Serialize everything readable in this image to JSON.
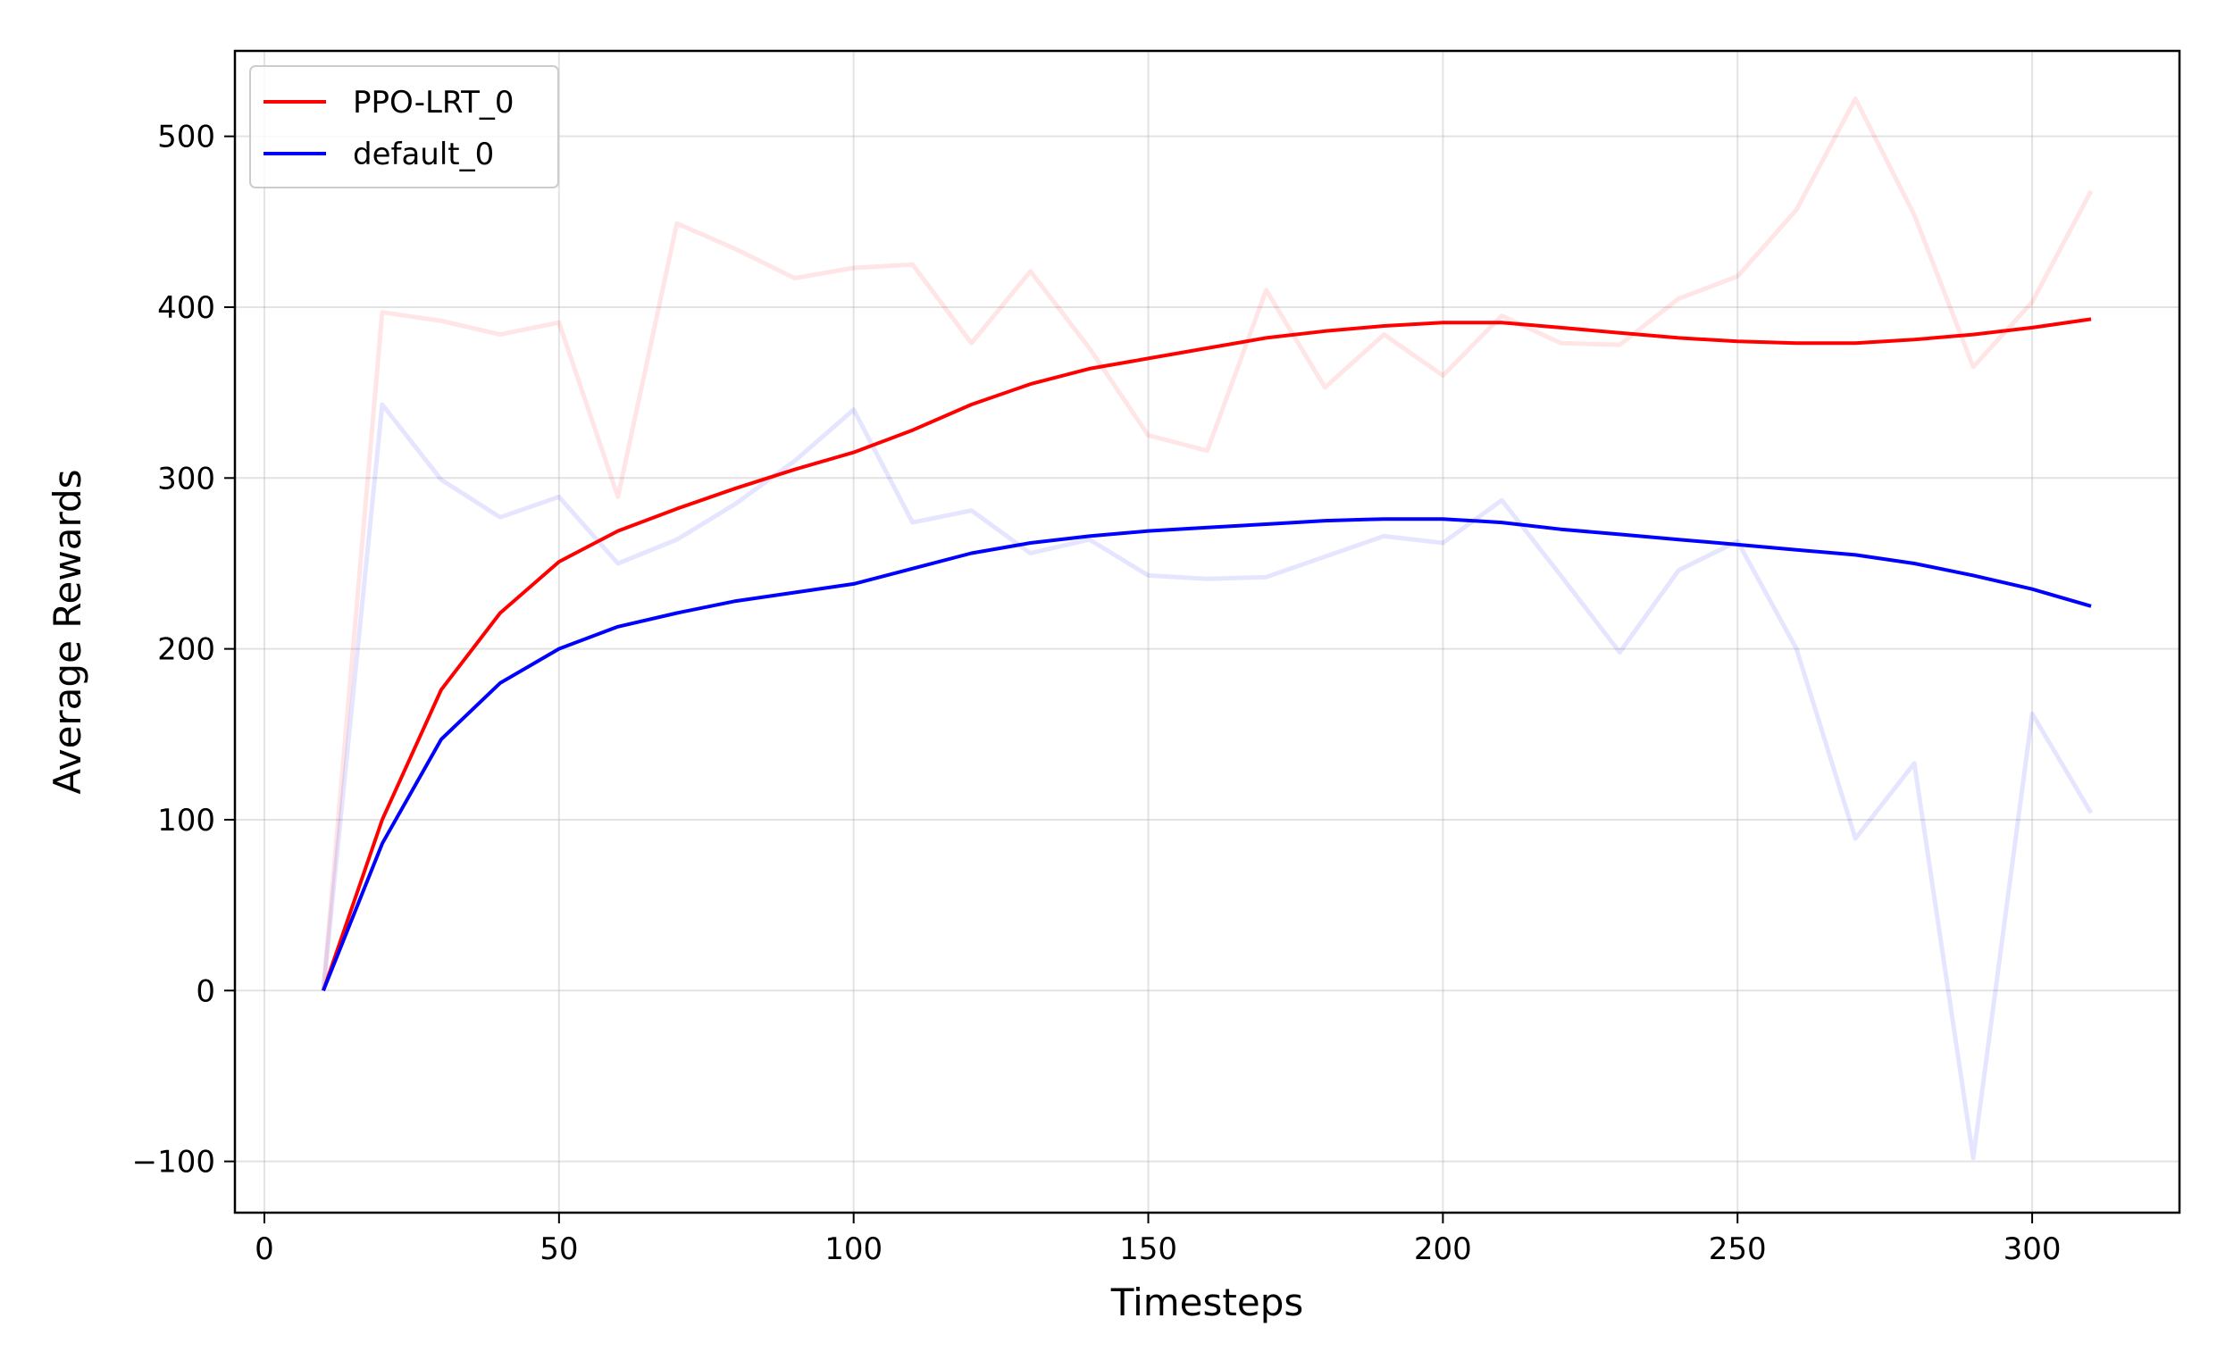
{
  "chart_data": {
    "type": "line",
    "title": "",
    "xlabel": "Timesteps",
    "ylabel": "Average Rewards",
    "xlim": [
      -5,
      325
    ],
    "ylim": [
      -130,
      550
    ],
    "xticks": [
      0,
      50,
      100,
      150,
      200,
      250,
      300
    ],
    "yticks": [
      -100,
      0,
      100,
      200,
      300,
      400,
      500
    ],
    "xtick_labels": [
      "0",
      "50",
      "100",
      "150",
      "200",
      "250",
      "300"
    ],
    "ytick_labels": [
      "−100",
      "0",
      "100",
      "200",
      "300",
      "400",
      "500"
    ],
    "grid": true,
    "legend_position": "upper-left",
    "x": [
      10,
      20,
      30,
      40,
      50,
      60,
      70,
      80,
      90,
      100,
      110,
      120,
      130,
      140,
      150,
      160,
      170,
      180,
      190,
      200,
      210,
      220,
      230,
      240,
      250,
      260,
      270,
      280,
      290,
      300,
      310
    ],
    "series": [
      {
        "name": "PPO-LRT_0",
        "color": "#ff0000",
        "smoothed": [
          0,
          100,
          176,
          221,
          251,
          269,
          282,
          294,
          305,
          315,
          328,
          343,
          355,
          364,
          370,
          376,
          382,
          386,
          389,
          391,
          391,
          388,
          385,
          382,
          380,
          379,
          379,
          381,
          384,
          388,
          393
        ],
        "raw": [
          0,
          397,
          392,
          384,
          391,
          289,
          449,
          434,
          417,
          423,
          425,
          379,
          421,
          376,
          325,
          316,
          410,
          353,
          384,
          360,
          395,
          379,
          378,
          405,
          418,
          457,
          522,
          454,
          365,
          403,
          468
        ]
      },
      {
        "name": "default_0",
        "color": "#0000ff",
        "smoothed": [
          0,
          86,
          147,
          180,
          200,
          213,
          221,
          228,
          233,
          238,
          247,
          256,
          262,
          266,
          269,
          271,
          273,
          275,
          276,
          276,
          274,
          270,
          267,
          264,
          261,
          258,
          255,
          250,
          243,
          235,
          225
        ],
        "raw": [
          0,
          343,
          299,
          277,
          289,
          250,
          264,
          285,
          310,
          340,
          274,
          281,
          256,
          264,
          243,
          241,
          242,
          254,
          266,
          262,
          287,
          243,
          198,
          246,
          263,
          200,
          89,
          133,
          -98,
          162,
          104
        ]
      }
    ]
  }
}
